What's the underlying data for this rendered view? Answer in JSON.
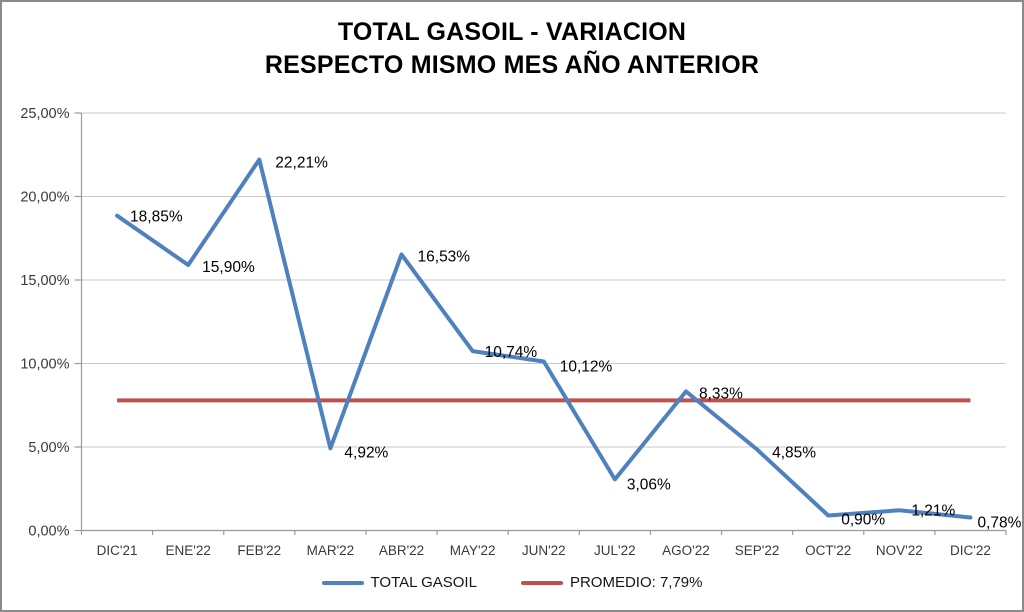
{
  "title": {
    "line1": "TOTAL GASOIL - VARIACION",
    "line2": "RESPECTO MISMO MES AÑO ANTERIOR"
  },
  "legend": [
    {
      "label": "TOTAL GASOIL",
      "color": "#4E81BD"
    },
    {
      "label": "PROMEDIO: 7,79%",
      "color": "#C0504D"
    }
  ],
  "colors": {
    "series_blue": "#4E81BD",
    "average_red": "#C0504D",
    "gridline": "#c8c8c8",
    "axis": "#9b9b9b",
    "axis_text": "#3a3a3a",
    "data_label_text": "#000000"
  },
  "chart_data": {
    "type": "line",
    "title": "TOTAL GASOIL - VARIACION RESPECTO MISMO MES AÑO ANTERIOR",
    "categories": [
      "DIC'21",
      "ENE'22",
      "FEB'22",
      "MAR'22",
      "ABR'22",
      "MAY'22",
      "JUN'22",
      "JUL'22",
      "AGO'22",
      "SEP'22",
      "OCT'22",
      "NOV'22",
      "DIC'22"
    ],
    "series": [
      {
        "name": "TOTAL GASOIL",
        "color": "#4E81BD",
        "values": [
          18.85,
          15.9,
          22.21,
          4.92,
          16.53,
          10.74,
          10.12,
          3.06,
          8.33,
          4.85,
          0.9,
          1.21,
          0.78
        ],
        "data_labels": [
          "18,85%",
          "15,90%",
          "22,21%",
          "4,92%",
          "16,53%",
          "10,74%",
          "10,12%",
          "3,06%",
          "8,33%",
          "4,85%",
          "0,90%",
          "1,21%",
          "0,78%"
        ]
      },
      {
        "name": "PROMEDIO: 7,79%",
        "color": "#C0504D",
        "constant_value": 7.79
      }
    ],
    "xlabel": "",
    "ylabel": "",
    "ylim": [
      0,
      25
    ],
    "y_tick_values": [
      0,
      5,
      10,
      15,
      20,
      25
    ],
    "y_tick_labels": [
      "0,00%",
      "5,00%",
      "10,00%",
      "15,00%",
      "20,00%",
      "25,00%"
    ],
    "grid": true,
    "legend_position": "bottom"
  }
}
